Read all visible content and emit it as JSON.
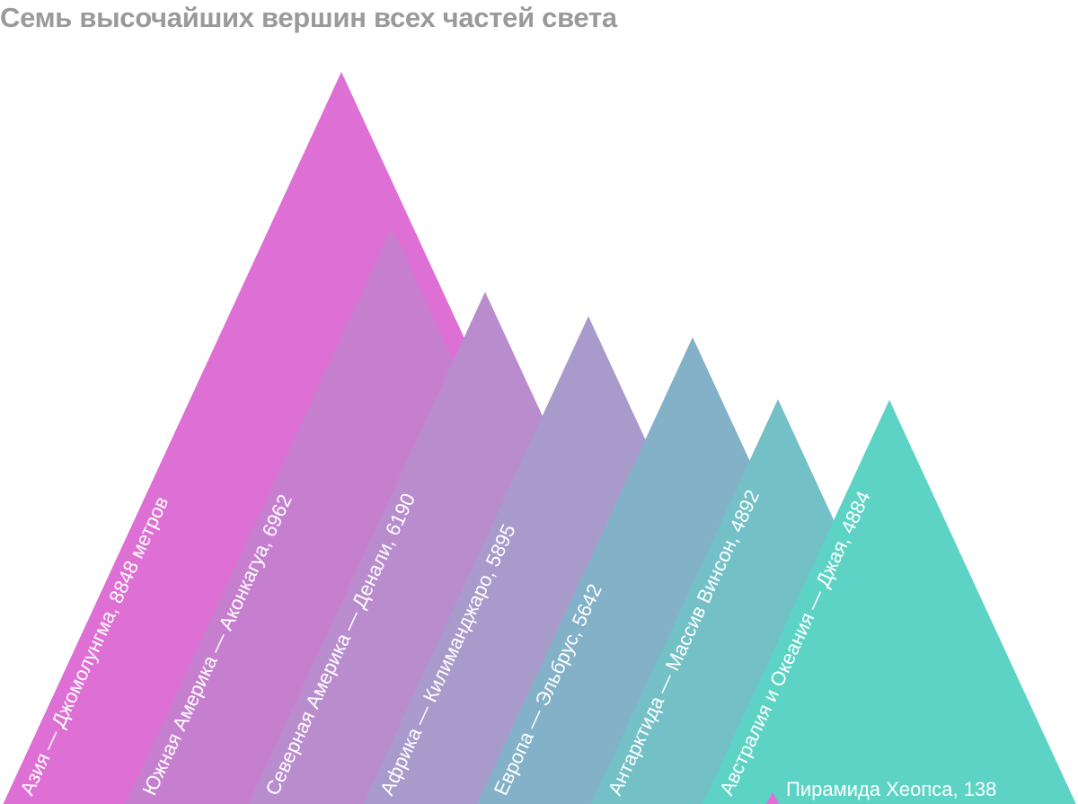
{
  "title": "Семь высочайших вершин всех частей света",
  "chart_data": {
    "type": "bar",
    "title": "Семь высочайших вершин всех частей света",
    "unit": "метров",
    "categories": [
      "Азия — Джомолунгма",
      "Южная Америка — Аконкагуа",
      "Северная Америка — Денали",
      "Африка — Килиманджаро",
      "Европа — Эльбрус",
      "Антарктида — Массив Винсон",
      "Австралия и Океания — Джая"
    ],
    "values": [
      8848,
      6962,
      6190,
      5895,
      5642,
      4892,
      4884
    ],
    "labels": [
      "Азия — Джомолунгма, 8848 метров",
      "Южная Америка — Аконкагуа, 6962",
      "Северная Америка — Денали, 6190",
      "Африка — Килиманджаро, 5895",
      "Европа — Эльбрус, 5642",
      "Антарктида — Массив Винсон, 4892",
      "Австралия и Океания — Джая, 4884"
    ],
    "colors": [
      "#dd6fd5",
      "#c67fcf",
      "#b98ccd",
      "#a89acb",
      "#83b1c7",
      "#73c0c6",
      "#5dd3c5"
    ],
    "reference": {
      "label": "Пирамида Хеопса, 138",
      "value": 138,
      "color": "#dd6fd5"
    }
  }
}
